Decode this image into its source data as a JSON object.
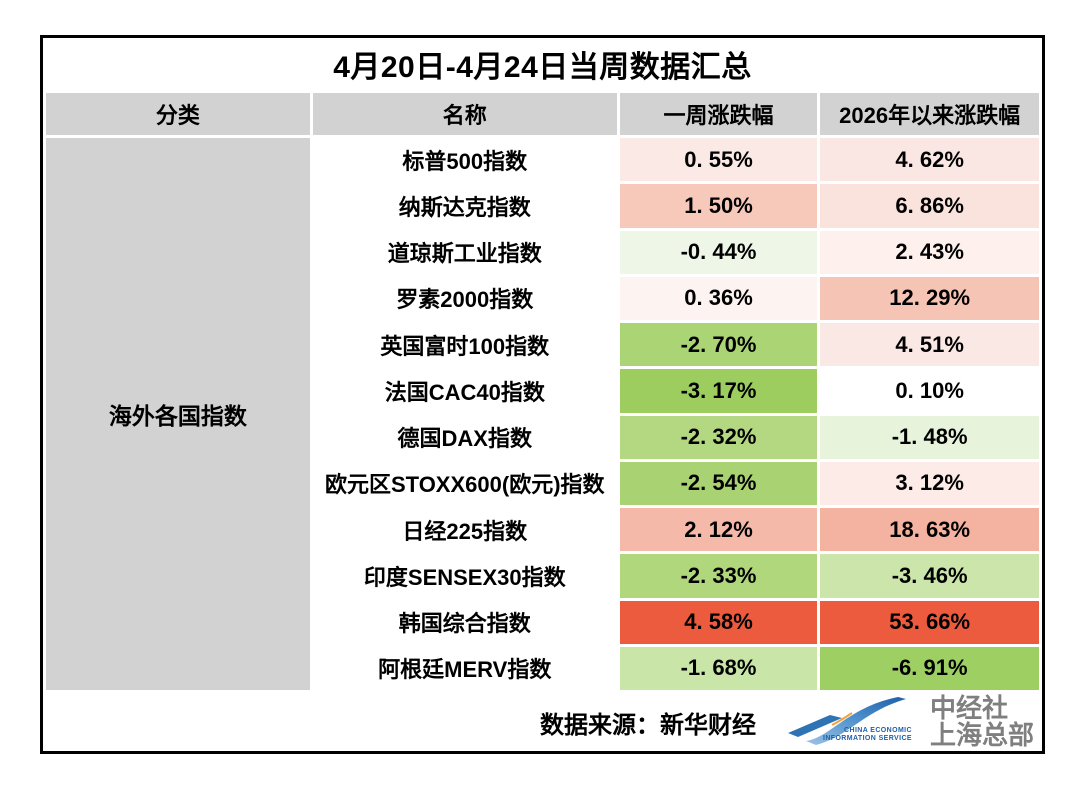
{
  "chart_data": {
    "type": "table",
    "title": "4月20日-4月24日当周数据汇总",
    "columns": [
      "分类",
      "名称",
      "一周涨跌幅",
      "2026年以来涨跌幅"
    ],
    "category": "海外各国指数",
    "rows": [
      {
        "name": "标普500指数",
        "week": "0. 55%",
        "week_value": 0.55,
        "week_bg": "#fae9e5",
        "ytd": "4. 62%",
        "ytd_value": 4.62,
        "ytd_bg": "#fae7e3"
      },
      {
        "name": "纳斯达克指数",
        "week": "1. 50%",
        "week_value": 1.5,
        "week_bg": "#f6c9bb",
        "ytd": "6. 86%",
        "ytd_value": 6.86,
        "ytd_bg": "#fae3dd"
      },
      {
        "name": "道琼斯工业指数",
        "week": "-0. 44%",
        "week_value": -0.44,
        "week_bg": "#eef6e7",
        "ytd": "2. 43%",
        "ytd_value": 2.43,
        "ytd_bg": "#fdf0ed"
      },
      {
        "name": "罗素2000指数",
        "week": "0. 36%",
        "week_value": 0.36,
        "week_bg": "#fdf3f1",
        "ytd": "12. 29%",
        "ytd_value": 12.29,
        "ytd_bg": "#f6c4b4"
      },
      {
        "name": "英国富时100指数",
        "week": "-2. 70%",
        "week_value": -2.7,
        "week_bg": "#abd474",
        "ytd": "4. 51%",
        "ytd_value": 4.51,
        "ytd_bg": "#fae8e4"
      },
      {
        "name": "法国CAC40指数",
        "week": "-3. 17%",
        "week_value": -3.17,
        "week_bg": "#9ccd5e",
        "ytd": "0. 10%",
        "ytd_value": 0.1,
        "ytd_bg": "#ffffff"
      },
      {
        "name": "德国DAX指数",
        "week": "-2. 32%",
        "week_value": -2.32,
        "week_bg": "#b3d881",
        "ytd": "-1. 48%",
        "ytd_value": -1.48,
        "ytd_bg": "#e8f3dc"
      },
      {
        "name": "欧元区STOXX600(欧元)指数",
        "week": "-2. 54%",
        "week_value": -2.54,
        "week_bg": "#a9d372",
        "ytd": "3. 12%",
        "ytd_value": 3.12,
        "ytd_bg": "#fcebe7"
      },
      {
        "name": "日经225指数",
        "week": "2. 12%",
        "week_value": 2.12,
        "week_bg": "#f4b9a8",
        "ytd": "18. 63%",
        "ytd_value": 18.63,
        "ytd_bg": "#f4b3a1"
      },
      {
        "name": "印度SENSEX30指数",
        "week": "-2. 33%",
        "week_value": -2.33,
        "week_bg": "#b0d77b",
        "ytd": "-3. 46%",
        "ytd_value": -3.46,
        "ytd_bg": "#cbe5aa"
      },
      {
        "name": "韩国综合指数",
        "week": "4. 58%",
        "week_value": 4.58,
        "week_bg": "#ec5b3e",
        "ytd": "53. 66%",
        "ytd_value": 53.66,
        "ytd_bg": "#ec5b3e"
      },
      {
        "name": "阿根廷MERV指数",
        "week": "-1. 68%",
        "week_value": -1.68,
        "week_bg": "#c9e5a8",
        "ytd": "-6. 91%",
        "ytd_value": -6.91,
        "ytd_bg": "#9ecf63"
      }
    ]
  },
  "footer": {
    "source_label": "数据来源：新华财经",
    "logo": {
      "caption_line1": "CHINA ECONOMIC",
      "caption_line2": "INFORMATION SERVICE",
      "org_line1": "中经社",
      "org_line2": "上海总部"
    }
  },
  "colors": {
    "header_bg": "#d2d2d2",
    "category_bg": "#d2d2d2",
    "border": "#000000",
    "logo_blue": "#2e74b5",
    "logo_light_blue": "#9dc3e6",
    "logo_accent_orange": "#f2a33c",
    "logo_caption_blue": "#1f5fa8",
    "logo_text_gray": "#7f7f7f"
  }
}
